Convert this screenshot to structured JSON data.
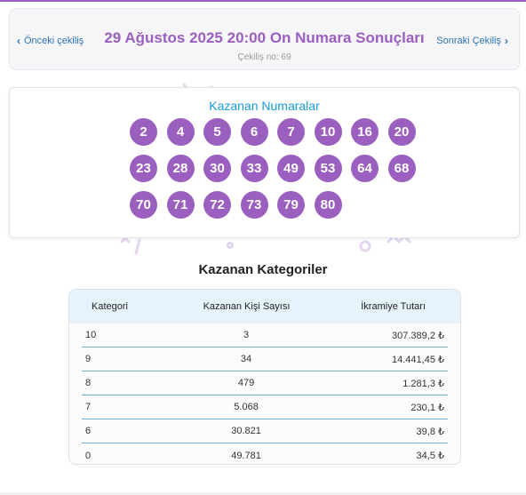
{
  "header": {
    "prev_label": "Önceki çekiliş",
    "next_label": "Sonraki Çekiliş",
    "title": "29 Ağustos 2025 20:00 On Numara Sonuçları",
    "draw_no": "Çekiliş no: 69"
  },
  "numbers": {
    "title": "Kazanan Numaralar",
    "balls": [
      "2",
      "4",
      "5",
      "6",
      "7",
      "10",
      "16",
      "20",
      "23",
      "28",
      "30",
      "33",
      "49",
      "53",
      "64",
      "68",
      "70",
      "71",
      "72",
      "73",
      "79",
      "80"
    ]
  },
  "categories": {
    "title": "Kazanan Kategoriler",
    "headers": [
      "Kategori",
      "Kazanan Kişi Sayısı",
      "İkramiye Tutarı"
    ],
    "rows": [
      [
        "10",
        "3",
        "307.389,2 ₺"
      ],
      [
        "9",
        "34",
        "14.441,45 ₺"
      ],
      [
        "8",
        "479",
        "1.281,3 ₺"
      ],
      [
        "7",
        "5.068",
        "230,1 ₺"
      ],
      [
        "6",
        "30.821",
        "39,8 ₺"
      ],
      [
        "0",
        "49.781",
        "34,5 ₺"
      ]
    ]
  },
  "colors": {
    "accent": "#9b5fc0",
    "link": "#2a72b5",
    "numbers_title": "#1a9ad6",
    "table_header_bg": "#e7f3fb"
  }
}
